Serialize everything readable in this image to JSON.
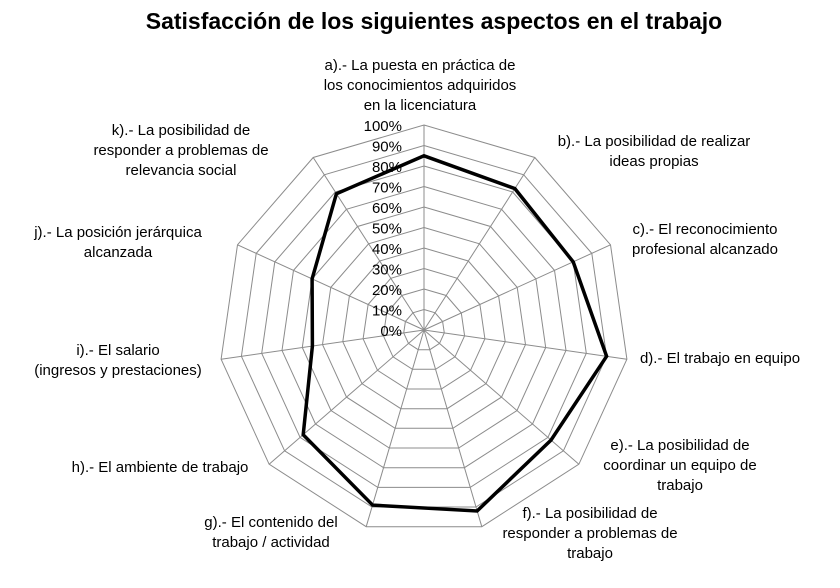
{
  "chart_data": {
    "type": "radar",
    "title": "Satisfacción de los siguientes aspectos en el trabajo",
    "ylim": [
      0,
      100
    ],
    "ticks": [
      "0%",
      "10%",
      "20%",
      "30%",
      "40%",
      "50%",
      "60%",
      "70%",
      "80%",
      "90%",
      "100%"
    ],
    "grid": true,
    "legend": "none",
    "categories": [
      [
        "a).- La puesta en práctica de",
        "los conocimientos adquiridos",
        "en la licenciatura"
      ],
      [
        "b).- La posibilidad de realizar",
        "ideas propias"
      ],
      [
        "c).- El reconocimiento",
        "profesional alcanzado"
      ],
      [
        "d).- El trabajo en equipo"
      ],
      [
        "e).- La posibilidad de",
        "coordinar un equipo de",
        "trabajo"
      ],
      [
        "f).- La posibilidad de",
        "responder a problemas de",
        "trabajo"
      ],
      [
        "g).- El contenido del",
        "trabajo / actividad"
      ],
      [
        "h).- El ambiente de trabajo"
      ],
      [
        "i).- El salario",
        "(ingresos y prestaciones)"
      ],
      [
        "j).- La posición jerárquica",
        "alcanzada"
      ],
      [
        "k).- La posibilidad de",
        "responder a problemas de",
        "relevancia social"
      ]
    ],
    "series": [
      {
        "values": [
          85,
          82,
          80,
          90,
          82,
          92,
          89,
          78,
          55,
          60,
          79
        ],
        "color": "#000000"
      }
    ]
  }
}
